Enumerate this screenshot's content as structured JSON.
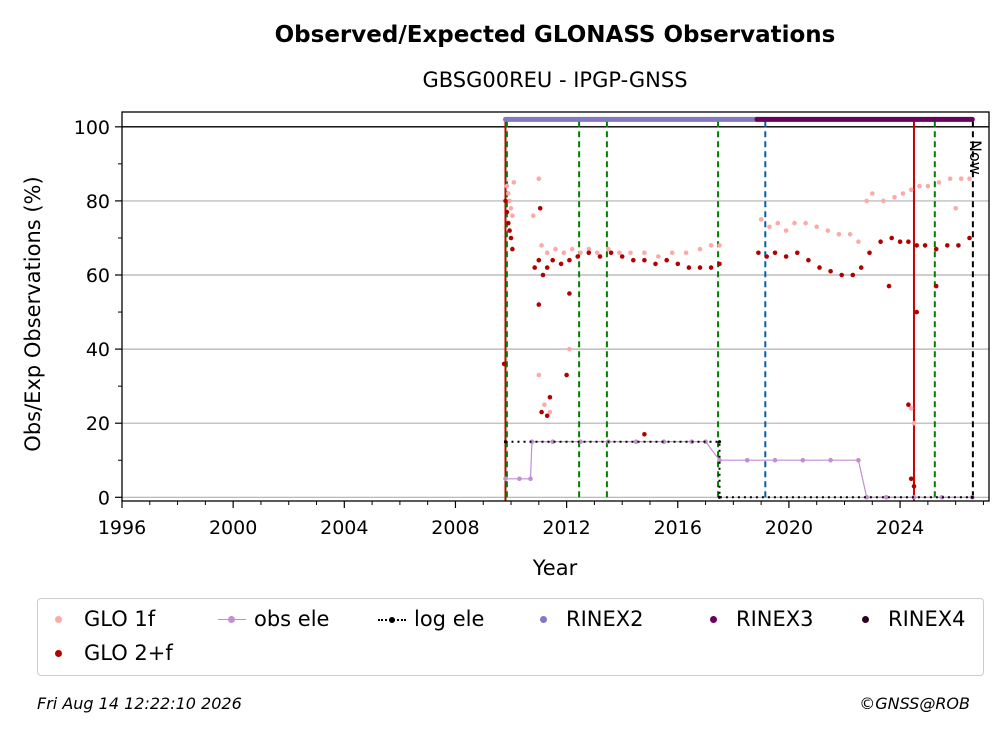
{
  "chart_data": {
    "type": "scatter",
    "title": "Observed/Expected GLONASS Observations",
    "subtitle": "GBSG00REU - IPGP-GNSS",
    "xlabel": "Year",
    "ylabel": "Obs/Exp Observations (%)",
    "xlim": [
      1996,
      2027.2
    ],
    "ylim": [
      -1,
      104
    ],
    "x_ticks": [
      "1996",
      "2000",
      "2004",
      "2008",
      "2012",
      "2016",
      "2020",
      "2024"
    ],
    "y_ticks": [
      "0",
      "20",
      "40",
      "60",
      "80",
      "100"
    ],
    "grid": "horizontal",
    "now_label": "Now",
    "series": [
      {
        "name": "GLO 1f",
        "color": "#ffa8a8",
        "points": [
          [
            2009.85,
            84
          ],
          [
            2009.9,
            82
          ],
          [
            2009.95,
            80
          ],
          [
            2010.0,
            78
          ],
          [
            2010.05,
            76
          ],
          [
            2010.1,
            85
          ],
          [
            2010.8,
            76
          ],
          [
            2011.0,
            86
          ],
          [
            2011.1,
            68
          ],
          [
            2011.3,
            66
          ],
          [
            2011.6,
            67
          ],
          [
            2011.9,
            66
          ],
          [
            2012.2,
            67
          ],
          [
            2012.5,
            66
          ],
          [
            2012.8,
            67
          ],
          [
            2013.1,
            66
          ],
          [
            2013.5,
            67
          ],
          [
            2013.9,
            66
          ],
          [
            2014.3,
            66
          ],
          [
            2014.8,
            66
          ],
          [
            2015.3,
            65
          ],
          [
            2015.8,
            66
          ],
          [
            2016.3,
            66
          ],
          [
            2016.8,
            67
          ],
          [
            2017.2,
            68
          ],
          [
            2017.5,
            68
          ],
          [
            2019.0,
            75
          ],
          [
            2019.3,
            73
          ],
          [
            2019.6,
            74
          ],
          [
            2019.9,
            72
          ],
          [
            2020.2,
            74
          ],
          [
            2020.6,
            74
          ],
          [
            2021.0,
            73
          ],
          [
            2021.4,
            72
          ],
          [
            2021.8,
            71
          ],
          [
            2022.2,
            71
          ],
          [
            2022.5,
            69
          ],
          [
            2022.8,
            80
          ],
          [
            2023.0,
            82
          ],
          [
            2023.4,
            80
          ],
          [
            2023.8,
            81
          ],
          [
            2024.1,
            82
          ],
          [
            2024.4,
            83
          ],
          [
            2024.7,
            84
          ],
          [
            2025.0,
            84
          ],
          [
            2025.4,
            85
          ],
          [
            2025.8,
            86
          ],
          [
            2026.2,
            86
          ],
          [
            2026.5,
            86
          ],
          [
            2011.0,
            33
          ],
          [
            2011.2,
            25
          ],
          [
            2011.4,
            23
          ],
          [
            2012.1,
            40
          ],
          [
            2024.4,
            24
          ],
          [
            2024.5,
            20
          ],
          [
            2026.0,
            78
          ]
        ]
      },
      {
        "name": "GLO 2+f",
        "color": "#b00000",
        "points": [
          [
            2009.8,
            80
          ],
          [
            2009.85,
            77
          ],
          [
            2009.9,
            74
          ],
          [
            2009.95,
            72
          ],
          [
            2010.0,
            70
          ],
          [
            2010.05,
            67
          ],
          [
            2009.75,
            36
          ],
          [
            2010.85,
            62
          ],
          [
            2011.0,
            64
          ],
          [
            2011.05,
            78
          ],
          [
            2011.15,
            60
          ],
          [
            2011.3,
            62
          ],
          [
            2011.5,
            64
          ],
          [
            2011.8,
            63
          ],
          [
            2012.1,
            64
          ],
          [
            2012.4,
            65
          ],
          [
            2012.8,
            66
          ],
          [
            2013.2,
            65
          ],
          [
            2013.6,
            66
          ],
          [
            2014.0,
            65
          ],
          [
            2014.4,
            64
          ],
          [
            2014.8,
            64
          ],
          [
            2015.2,
            63
          ],
          [
            2015.6,
            64
          ],
          [
            2016.0,
            63
          ],
          [
            2016.4,
            62
          ],
          [
            2016.8,
            62
          ],
          [
            2017.2,
            62
          ],
          [
            2017.5,
            63
          ],
          [
            2018.9,
            66
          ],
          [
            2019.2,
            65
          ],
          [
            2019.5,
            66
          ],
          [
            2019.9,
            65
          ],
          [
            2020.3,
            66
          ],
          [
            2020.7,
            64
          ],
          [
            2021.1,
            62
          ],
          [
            2021.5,
            61
          ],
          [
            2021.9,
            60
          ],
          [
            2022.3,
            60
          ],
          [
            2022.6,
            62
          ],
          [
            2022.9,
            66
          ],
          [
            2023.3,
            69
          ],
          [
            2023.7,
            70
          ],
          [
            2024.0,
            69
          ],
          [
            2024.3,
            69
          ],
          [
            2024.6,
            68
          ],
          [
            2024.9,
            68
          ],
          [
            2025.3,
            67
          ],
          [
            2025.7,
            68
          ],
          [
            2026.1,
            68
          ],
          [
            2026.5,
            70
          ],
          [
            2011.0,
            52
          ],
          [
            2011.1,
            23
          ],
          [
            2011.3,
            22
          ],
          [
            2011.4,
            27
          ],
          [
            2012.0,
            33
          ],
          [
            2012.1,
            55
          ],
          [
            2014.8,
            17
          ],
          [
            2023.6,
            57
          ],
          [
            2024.3,
            25
          ],
          [
            2024.4,
            5
          ],
          [
            2024.5,
            3
          ],
          [
            2024.6,
            50
          ],
          [
            2025.3,
            57
          ]
        ]
      },
      {
        "name": "obs ele",
        "color": "#c28fd0",
        "points": [
          [
            2009.8,
            5
          ],
          [
            2010.3,
            5
          ],
          [
            2010.7,
            5
          ],
          [
            2010.75,
            15
          ],
          [
            2011.5,
            15
          ],
          [
            2012.5,
            15
          ],
          [
            2013.5,
            15
          ],
          [
            2014.5,
            15
          ],
          [
            2015.5,
            15
          ],
          [
            2016.5,
            15
          ],
          [
            2017.0,
            15
          ],
          [
            2017.5,
            10
          ],
          [
            2018.5,
            10
          ],
          [
            2019.5,
            10
          ],
          [
            2020.5,
            10
          ],
          [
            2021.5,
            10
          ],
          [
            2022.5,
            10
          ],
          [
            2022.8,
            0
          ],
          [
            2023.5,
            0
          ],
          [
            2024.5,
            0
          ],
          [
            2025.5,
            0
          ],
          [
            2026.6,
            0
          ]
        ]
      },
      {
        "name": "log ele",
        "color": "#000000",
        "points": [
          [
            2009.8,
            15
          ],
          [
            2017.5,
            15
          ],
          [
            2017.5,
            0
          ],
          [
            2026.6,
            0
          ]
        ]
      },
      {
        "name": "RINEX2",
        "color": "#8478c0",
        "x_range": [
          2009.8,
          2018.85
        ],
        "y": 102
      },
      {
        "name": "RINEX3",
        "color": "#6a0060",
        "x_range": [
          2018.85,
          2026.6
        ],
        "y": 102
      },
      {
        "name": "RINEX4",
        "color": "#2a0020",
        "x_range": [],
        "y": 102
      }
    ],
    "vlines": [
      {
        "x": 2009.8,
        "color": "#cc0000",
        "style": "solid"
      },
      {
        "x": 2009.85,
        "color": "#008000",
        "style": "dashed"
      },
      {
        "x": 2012.45,
        "color": "#008000",
        "style": "dashed"
      },
      {
        "x": 2013.45,
        "color": "#008000",
        "style": "dashed"
      },
      {
        "x": 2017.45,
        "color": "#008000",
        "style": "dashed"
      },
      {
        "x": 2019.15,
        "color": "#0060b0",
        "style": "dashed"
      },
      {
        "x": 2024.5,
        "color": "#cc0000",
        "style": "solid"
      },
      {
        "x": 2025.25,
        "color": "#008000",
        "style": "dashed"
      },
      {
        "x": 2026.62,
        "color": "#000000",
        "style": "dashed"
      }
    ]
  },
  "footer": {
    "timestamp": "Fri Aug 14 12:22:10 2026",
    "credit": "©GNSS@ROB"
  }
}
